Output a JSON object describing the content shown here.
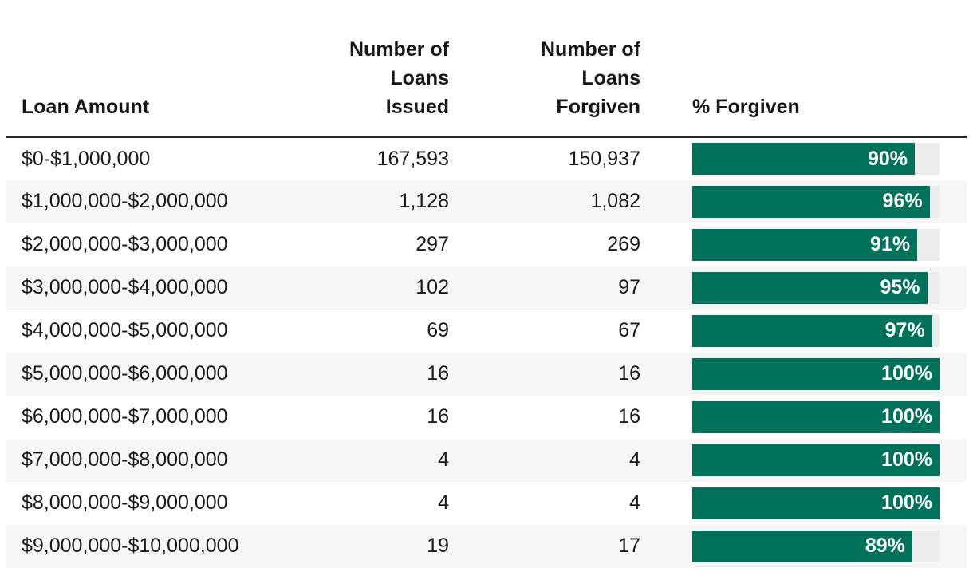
{
  "colors": {
    "bar_fill": "#00715a",
    "bar_track": "#ececec",
    "row_stripe": "#f6f6f6",
    "header_rule": "#262626",
    "text": "#1a1a1a"
  },
  "header": {
    "col1": "Loan Amount",
    "col2": "Number of\nLoans\nIssued",
    "col3": "Number of\nLoans\nForgiven",
    "col4": "% Forgiven"
  },
  "rows": [
    {
      "loan_amount": "$0-$1,000,000",
      "issued": "167,593",
      "forgiven": "150,937",
      "pct": 90,
      "pct_label": "90%"
    },
    {
      "loan_amount": "$1,000,000-$2,000,000",
      "issued": "1,128",
      "forgiven": "1,082",
      "pct": 96,
      "pct_label": "96%"
    },
    {
      "loan_amount": "$2,000,000-$3,000,000",
      "issued": "297",
      "forgiven": "269",
      "pct": 91,
      "pct_label": "91%"
    },
    {
      "loan_amount": "$3,000,000-$4,000,000",
      "issued": "102",
      "forgiven": "97",
      "pct": 95,
      "pct_label": "95%"
    },
    {
      "loan_amount": "$4,000,000-$5,000,000",
      "issued": "69",
      "forgiven": "67",
      "pct": 97,
      "pct_label": "97%"
    },
    {
      "loan_amount": "$5,000,000-$6,000,000",
      "issued": "16",
      "forgiven": "16",
      "pct": 100,
      "pct_label": "100%"
    },
    {
      "loan_amount": "$6,000,000-$7,000,000",
      "issued": "16",
      "forgiven": "16",
      "pct": 100,
      "pct_label": "100%"
    },
    {
      "loan_amount": "$7,000,000-$8,000,000",
      "issued": "4",
      "forgiven": "4",
      "pct": 100,
      "pct_label": "100%"
    },
    {
      "loan_amount": "$8,000,000-$9,000,000",
      "issued": "4",
      "forgiven": "4",
      "pct": 100,
      "pct_label": "100%"
    },
    {
      "loan_amount": "$9,000,000-$10,000,000",
      "issued": "19",
      "forgiven": "17",
      "pct": 89,
      "pct_label": "89%"
    }
  ],
  "chart_data": {
    "type": "table",
    "title": "",
    "columns": [
      "Loan Amount",
      "Number of Loans Issued",
      "Number of Loans Forgiven",
      "% Forgiven"
    ],
    "rows": [
      [
        "$0-$1,000,000",
        167593,
        150937,
        90
      ],
      [
        "$1,000,000-$2,000,000",
        1128,
        1082,
        96
      ],
      [
        "$2,000,000-$3,000,000",
        297,
        269,
        91
      ],
      [
        "$3,000,000-$4,000,000",
        102,
        97,
        95
      ],
      [
        "$4,000,000-$5,000,000",
        69,
        67,
        97
      ],
      [
        "$5,000,000-$6,000,000",
        16,
        16,
        100
      ],
      [
        "$6,000,000-$7,000,000",
        16,
        16,
        100
      ],
      [
        "$7,000,000-$8,000,000",
        4,
        4,
        100
      ],
      [
        "$8,000,000-$9,000,000",
        4,
        4,
        100
      ],
      [
        "$9,000,000-$10,000,000",
        19,
        17,
        89
      ]
    ],
    "embedded_bar_chart": {
      "type": "bar",
      "orientation": "horizontal",
      "column": "% Forgiven",
      "values": [
        90,
        96,
        91,
        95,
        97,
        100,
        100,
        100,
        100,
        89
      ],
      "xlim": [
        0,
        100
      ],
      "bar_color": "#00715a",
      "track_color": "#ececec",
      "value_labels_inside": true
    }
  }
}
